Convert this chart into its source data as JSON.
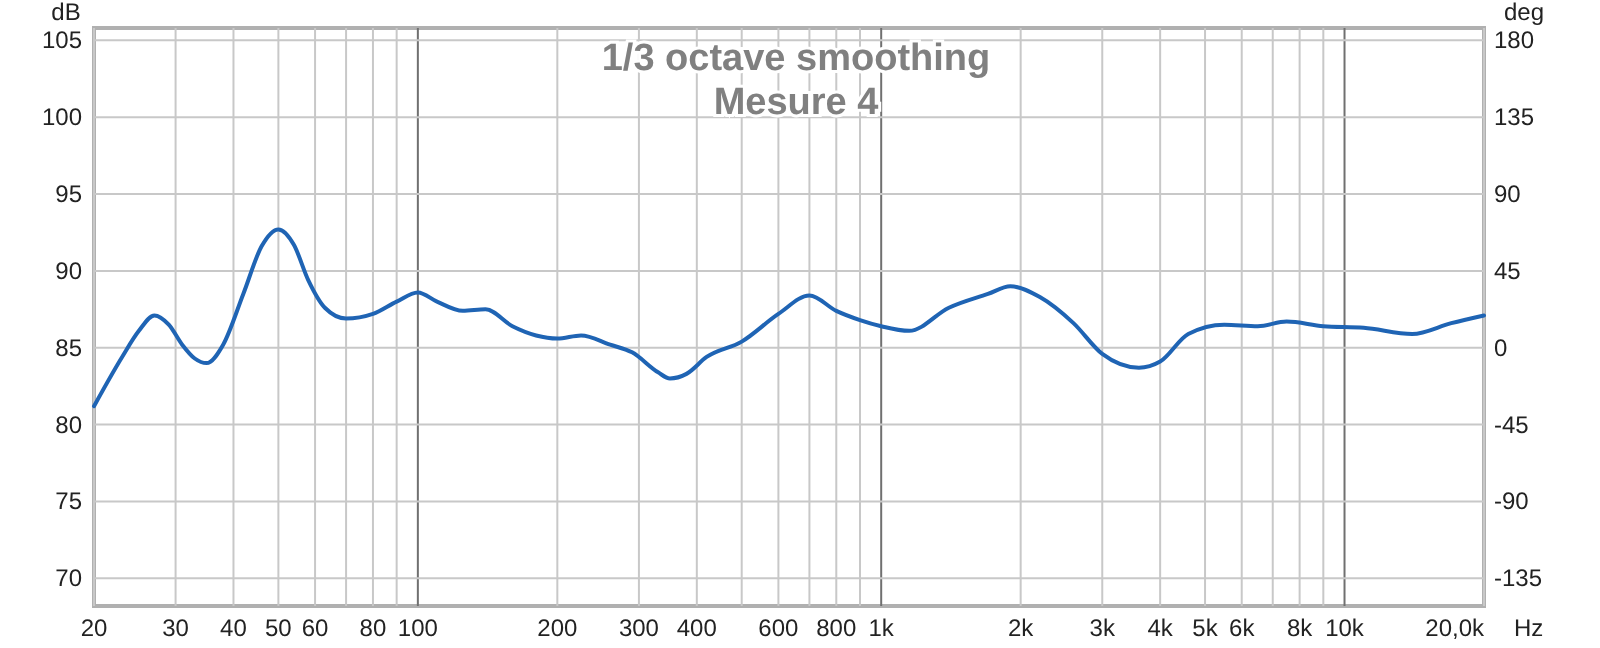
{
  "chart_data": {
    "type": "line",
    "title": "1/3 octave smoothing",
    "subtitle": "Mesure 4",
    "ylabel": "dB",
    "y2label": "deg",
    "log": "x",
    "grid": true,
    "xlim": [
      20,
      20000
    ],
    "xticks": [
      20,
      30,
      40,
      50,
      60,
      {
        "value": 70,
        "label": null
      },
      80,
      {
        "value": 90,
        "label": null
      },
      100,
      200,
      300,
      400,
      {
        "value": 500,
        "label": null
      },
      600,
      {
        "value": 700,
        "label": null
      },
      800,
      {
        "value": 900,
        "label": null
      },
      {
        "value": 1000,
        "label": "1k"
      },
      {
        "value": 2000,
        "label": "2k"
      },
      {
        "value": 3000,
        "label": "3k"
      },
      {
        "value": 4000,
        "label": "4k"
      },
      {
        "value": 5000,
        "label": "5k"
      },
      {
        "value": 6000,
        "label": "6k"
      },
      {
        "value": 7000,
        "label": null
      },
      {
        "value": 8000,
        "label": "8k"
      },
      {
        "value": 9000,
        "label": null
      },
      {
        "value": 10000,
        "label": "10k"
      },
      {
        "value": 20000,
        "label": "20,0k"
      }
    ],
    "xlabel": "Hz",
    "ylim": [
      68.2,
      105.8
    ],
    "yticks": [
      70,
      75,
      80,
      85,
      90,
      95,
      100,
      105
    ],
    "y2lim": [
      -151.2,
      187.2
    ],
    "y2ticks": [
      -135,
      -90,
      -45,
      0,
      45,
      90,
      135,
      180
    ],
    "series": [
      {
        "color": "#1f64b4",
        "x": [
          20,
          23,
          25,
          27,
          29,
          31,
          33,
          35,
          38,
          42,
          46,
          50,
          54,
          58,
          63,
          70,
          80,
          90,
          100,
          110,
          125,
          140,
          160,
          180,
          200,
          225,
          260,
          290,
          330,
          350,
          380,
          420,
          500,
          600,
          700,
          800,
          900,
          1000,
          1150,
          1400,
          1700,
          1900,
          2200,
          2600,
          3000,
          3600,
          4000,
          4600,
          5500,
          6500,
          7500,
          9000,
          11000,
          14000,
          17000,
          20000
        ],
        "values": [
          81.2,
          84.4,
          86.1,
          87.1,
          86.5,
          85.2,
          84.3,
          84.0,
          85.2,
          88.5,
          91.6,
          92.7,
          91.7,
          89.4,
          87.6,
          86.9,
          87.2,
          88.0,
          88.6,
          88.0,
          87.4,
          87.5,
          86.4,
          85.8,
          85.6,
          85.8,
          85.2,
          84.7,
          83.4,
          83.0,
          83.3,
          84.4,
          85.4,
          87.2,
          88.4,
          87.4,
          86.8,
          86.4,
          86.1,
          87.6,
          88.5,
          89.0,
          88.3,
          86.6,
          84.6,
          83.7,
          84.1,
          85.9,
          86.5,
          86.4,
          86.7,
          86.4,
          86.3,
          85.9,
          86.6,
          87.1
        ]
      }
    ]
  }
}
